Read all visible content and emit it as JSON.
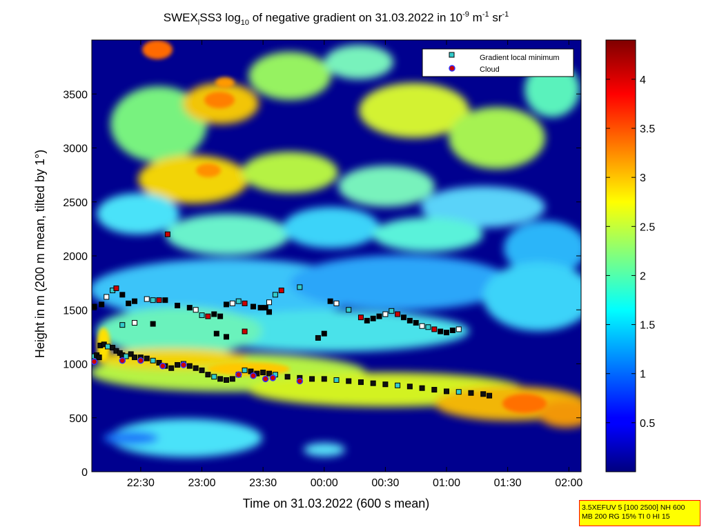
{
  "chart_data": {
    "type": "heatmap",
    "title": {
      "p1": "SWEX",
      "p1_sub": "l",
      "p2": "SS3 log",
      "p2_sub": "10",
      "p3": " of negative gradient on 31.03.2022 in 10",
      "p3_sup": "-9",
      "p4": " m",
      "p4_sup": "-1",
      "p5": " sr",
      "p5_sup": "-1"
    },
    "xlabel": "Time on 31.03.2022 (600 s mean)",
    "ylabel": "Height in m (200 m mean, tilted by 1°)",
    "x_ticks": [
      "22:30",
      "23:00",
      "23:30",
      "00:00",
      "00:30",
      "01:00",
      "01:30",
      "02:00"
    ],
    "x_tick_hours": [
      22.5,
      23.0,
      23.5,
      24.0,
      24.5,
      25.0,
      25.5,
      26.0
    ],
    "xlim_hours": [
      22.1,
      26.1
    ],
    "y_ticks": [
      "0",
      "500",
      "1000",
      "1500",
      "2000",
      "2500",
      "3000",
      "3500"
    ],
    "y_tick_values": [
      0,
      500,
      1000,
      1500,
      2000,
      2500,
      3000,
      3500
    ],
    "ylim": [
      0,
      4000
    ],
    "colorbar": {
      "ticks": [
        "0.5",
        "1",
        "1.5",
        "2",
        "2.5",
        "3",
        "3.5",
        "4"
      ],
      "tick_values": [
        0.5,
        1,
        1.5,
        2,
        2.5,
        3,
        3.5,
        4
      ],
      "range": [
        0,
        4.4
      ],
      "colormap": "jet"
    },
    "legend": {
      "placement": "top-right",
      "entries": [
        {
          "label": "Gradient local minimum",
          "marker": "square",
          "color": "#33cccc"
        },
        {
          "label": "Cloud",
          "marker": "circle",
          "color": "#cc0000",
          "edge": "#3333ff"
        }
      ]
    },
    "series": [
      {
        "name": "Gradient local minimum",
        "marker": "square",
        "points": [
          [
            22.12,
            1070
          ],
          [
            22.14,
            1080
          ],
          [
            22.16,
            1060
          ],
          [
            22.17,
            1170
          ],
          [
            22.2,
            1180
          ],
          [
            22.23,
            1160
          ],
          [
            22.27,
            1150
          ],
          [
            22.3,
            1120
          ],
          [
            22.33,
            1100
          ],
          [
            22.35,
            1080
          ],
          [
            22.38,
            1070
          ],
          [
            22.42,
            1090
          ],
          [
            22.45,
            1060
          ],
          [
            22.5,
            1060
          ],
          [
            22.55,
            1050
          ],
          [
            22.6,
            1030
          ],
          [
            22.65,
            1010
          ],
          [
            22.7,
            980
          ],
          [
            22.75,
            960
          ],
          [
            22.8,
            990
          ],
          [
            22.85,
            1000
          ],
          [
            22.9,
            980
          ],
          [
            22.95,
            960
          ],
          [
            23.0,
            940
          ],
          [
            23.05,
            900
          ],
          [
            23.1,
            880
          ],
          [
            23.15,
            860
          ],
          [
            23.2,
            850
          ],
          [
            23.25,
            860
          ],
          [
            23.3,
            900
          ],
          [
            23.35,
            940
          ],
          [
            23.4,
            930
          ],
          [
            23.45,
            910
          ],
          [
            23.5,
            920
          ],
          [
            23.55,
            910
          ],
          [
            23.6,
            900
          ],
          [
            23.7,
            880
          ],
          [
            23.8,
            870
          ],
          [
            23.9,
            860
          ],
          [
            24.0,
            860
          ],
          [
            24.1,
            850
          ],
          [
            24.2,
            840
          ],
          [
            24.3,
            830
          ],
          [
            24.4,
            820
          ],
          [
            24.5,
            810
          ],
          [
            24.6,
            800
          ],
          [
            24.7,
            790
          ],
          [
            24.8,
            775
          ],
          [
            24.9,
            760
          ],
          [
            25.0,
            745
          ],
          [
            25.1,
            740
          ],
          [
            25.2,
            730
          ],
          [
            25.3,
            720
          ],
          [
            25.35,
            705
          ],
          [
            22.12,
            1530
          ],
          [
            22.18,
            1550
          ],
          [
            22.22,
            1620
          ],
          [
            22.27,
            1680
          ],
          [
            22.3,
            1700
          ],
          [
            22.35,
            1640
          ],
          [
            22.4,
            1560
          ],
          [
            22.45,
            1580
          ],
          [
            22.55,
            1600
          ],
          [
            22.6,
            1590
          ],
          [
            22.65,
            1590
          ],
          [
            22.7,
            1590
          ],
          [
            22.8,
            1540
          ],
          [
            22.9,
            1520
          ],
          [
            22.95,
            1500
          ],
          [
            23.0,
            1450
          ],
          [
            23.05,
            1440
          ],
          [
            23.1,
            1460
          ],
          [
            23.15,
            1440
          ],
          [
            23.2,
            1550
          ],
          [
            23.25,
            1560
          ],
          [
            23.3,
            1580
          ],
          [
            23.35,
            1560
          ],
          [
            23.42,
            1530
          ],
          [
            23.48,
            1520
          ],
          [
            23.52,
            1520
          ],
          [
            23.55,
            1570
          ],
          [
            23.6,
            1640
          ],
          [
            23.65,
            1680
          ],
          [
            23.95,
            1240
          ],
          [
            24.0,
            1280
          ],
          [
            24.05,
            1580
          ],
          [
            24.1,
            1560
          ],
          [
            24.2,
            1500
          ],
          [
            24.3,
            1430
          ],
          [
            24.35,
            1400
          ],
          [
            24.4,
            1420
          ],
          [
            24.45,
            1440
          ],
          [
            24.5,
            1460
          ],
          [
            24.55,
            1490
          ],
          [
            24.6,
            1460
          ],
          [
            24.65,
            1430
          ],
          [
            24.7,
            1400
          ],
          [
            24.75,
            1380
          ],
          [
            24.8,
            1350
          ],
          [
            24.85,
            1340
          ],
          [
            24.9,
            1320
          ],
          [
            24.95,
            1300
          ],
          [
            25.0,
            1290
          ],
          [
            25.05,
            1310
          ],
          [
            25.1,
            1320
          ],
          [
            23.8,
            1710
          ],
          [
            22.72,
            2200
          ],
          [
            23.12,
            1280
          ],
          [
            23.2,
            1250
          ],
          [
            22.6,
            1370
          ],
          [
            22.45,
            1380
          ],
          [
            22.35,
            1360
          ],
          [
            23.35,
            1300
          ],
          [
            23.55,
            1480
          ]
        ]
      },
      {
        "name": "Cloud",
        "marker": "circle",
        "points": [
          [
            22.12,
            1020
          ],
          [
            22.35,
            1030
          ],
          [
            22.5,
            1030
          ],
          [
            22.68,
            980
          ],
          [
            22.85,
            990
          ],
          [
            23.3,
            900
          ],
          [
            23.42,
            890
          ],
          [
            23.52,
            860
          ],
          [
            23.58,
            870
          ],
          [
            23.8,
            840
          ]
        ]
      }
    ]
  },
  "param_box": {
    "line1": "3.5XEFUV 5 [100 2500] NH 600",
    "line2": "MB 200 RG 15% TI 0 HI 15"
  }
}
